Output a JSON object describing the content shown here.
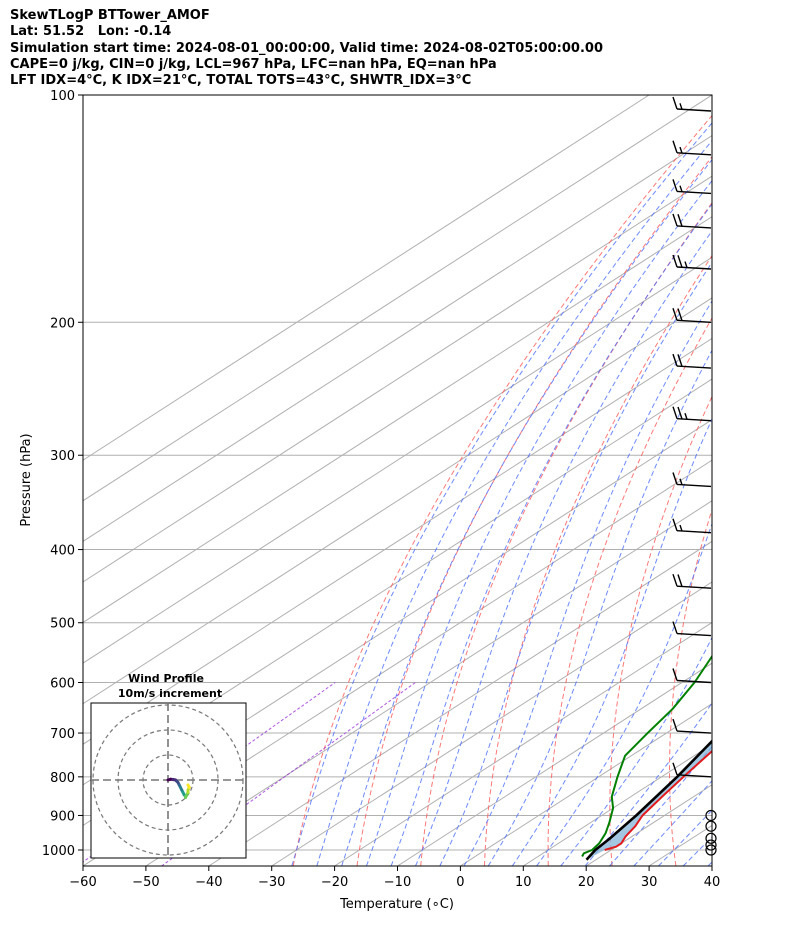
{
  "header": {
    "line1": "SkewTLogP BTTower_AMOF",
    "line2": "Lat: 51.52   Lon: -0.14",
    "line3": "Simulation start time: 2024-08-01_00:00:00, Valid time: 2024-08-02T05:00:00.00",
    "line4": "CAPE=0 j/kg, CIN=0 j/kg, LCL=967 hPa, LFC=nan hPa, EQ=nan hPa",
    "line5": "LFT IDX=4°C, K IDX=21°C, TOTAL TOTS=43°C, SHWTR_IDX=3°C"
  },
  "colors": {
    "temperature": "#e31a1c",
    "dewpoint": "#008000",
    "parcel": "#000000",
    "shading": "#7fb0d5",
    "dry_adiabat": "#ff5555",
    "moist_adiabat": "#4a6cff",
    "mixing_ratio": "#9b30d9",
    "grid": "#b0b0b0"
  },
  "chart_data": {
    "type": "line",
    "xlabel": "Temperature (∘C)",
    "ylabel": "Pressure (hPa)",
    "xlim": [
      -60,
      40
    ],
    "ylim": [
      1050,
      100
    ],
    "x_ticks": [
      -60,
      -50,
      -40,
      -30,
      -20,
      -10,
      0,
      10,
      20,
      30,
      40
    ],
    "y_ticks": [
      100,
      200,
      300,
      400,
      500,
      600,
      700,
      800,
      900,
      1000
    ],
    "y_scale": "log",
    "grid": true,
    "series": [
      {
        "key": "temperature",
        "points": [
          [
            1000,
            19
          ],
          [
            990,
            20
          ],
          [
            980,
            20
          ],
          [
            960,
            19
          ],
          [
            930,
            18
          ],
          [
            900,
            16.5
          ],
          [
            850,
            15
          ],
          [
            800,
            13.5
          ],
          [
            750,
            12
          ],
          [
            700,
            10.5
          ],
          [
            650,
            9
          ],
          [
            600,
            7.5
          ],
          [
            550,
            6
          ],
          [
            500,
            5
          ],
          [
            470,
            4
          ],
          [
            430,
            2
          ],
          [
            400,
            0
          ],
          [
            360,
            -3
          ],
          [
            320,
            -6
          ],
          [
            290,
            -8.5
          ],
          [
            260,
            -11
          ],
          [
            240,
            -14
          ],
          [
            220,
            -14.5
          ],
          [
            200,
            -14
          ],
          [
            180,
            -14
          ],
          [
            160,
            -12
          ],
          [
            150,
            -10
          ],
          [
            140,
            -7
          ],
          [
            130,
            -4
          ],
          [
            125,
            -3
          ],
          [
            120,
            -2
          ],
          [
            110,
            1
          ],
          [
            100,
            4
          ]
        ]
      },
      {
        "key": "dewpoint",
        "points": [
          [
            1020,
            17
          ],
          [
            1010,
            16.5
          ],
          [
            1000,
            17
          ],
          [
            980,
            16.5
          ],
          [
            950,
            15
          ],
          [
            920,
            13
          ],
          [
            880,
            10
          ],
          [
            850,
            7
          ],
          [
            800,
            3
          ],
          [
            750,
            -1
          ],
          [
            700,
            -3
          ],
          [
            650,
            -5
          ],
          [
            600,
            -8
          ],
          [
            550,
            -12
          ],
          [
            500,
            -15
          ],
          [
            450,
            -19
          ],
          [
            420,
            -21
          ],
          [
            400,
            -20
          ],
          [
            370,
            -18
          ],
          [
            340,
            -17
          ],
          [
            320,
            -16
          ],
          [
            300,
            -16
          ],
          [
            280,
            -15.5
          ],
          [
            260,
            -15
          ],
          [
            240,
            -18
          ],
          [
            220,
            -21
          ],
          [
            200,
            -23
          ],
          [
            180,
            -24
          ],
          [
            160,
            -26
          ],
          [
            150,
            -29
          ],
          [
            140,
            -30
          ],
          [
            130,
            -31
          ],
          [
            120,
            -28
          ],
          [
            100,
            -15
          ]
        ]
      },
      {
        "key": "parcel",
        "points": [
          [
            1030,
            18.5
          ],
          [
            1000,
            17.5
          ],
          [
            967,
            17
          ],
          [
            900,
            15.5
          ],
          [
            800,
            12.5
          ],
          [
            700,
            8.5
          ],
          [
            600,
            4
          ],
          [
            500,
            -2
          ],
          [
            400,
            -10.5
          ],
          [
            350,
            -16
          ],
          [
            300,
            -22.5
          ],
          [
            250,
            -31
          ],
          [
            200,
            -42
          ],
          [
            150,
            -57.5
          ],
          [
            125,
            -68
          ],
          [
            100,
            -80
          ]
        ]
      }
    ],
    "wind_barbs": [
      {
        "p": 1000,
        "speed": 0
      },
      {
        "p": 985,
        "speed": 0
      },
      {
        "p": 965,
        "speed": 0
      },
      {
        "p": 930,
        "speed": 0
      },
      {
        "p": 900,
        "speed": 0
      },
      {
        "p": 800,
        "speed": 10
      },
      {
        "p": 700,
        "speed": 10
      },
      {
        "p": 600,
        "speed": 10
      },
      {
        "p": 520,
        "speed": 10
      },
      {
        "p": 450,
        "speed": 20
      },
      {
        "p": 380,
        "speed": 15
      },
      {
        "p": 330,
        "speed": 15
      },
      {
        "p": 270,
        "speed": 25
      },
      {
        "p": 230,
        "speed": 20
      },
      {
        "p": 200,
        "speed": 20
      },
      {
        "p": 170,
        "speed": 25
      },
      {
        "p": 150,
        "speed": 20
      },
      {
        "p": 135,
        "speed": 15
      },
      {
        "p": 120,
        "speed": 15
      },
      {
        "p": 105,
        "speed": 15
      }
    ],
    "inset": {
      "title_line1": "Wind Profile",
      "title_line2": "10m/s increment",
      "hodograph": [
        [
          0,
          0
        ],
        [
          1,
          0.3
        ],
        [
          2,
          0.2
        ],
        [
          3,
          0
        ],
        [
          3.5,
          -0.5
        ],
        [
          4,
          -1
        ],
        [
          4.5,
          -2
        ],
        [
          5,
          -3
        ],
        [
          5.5,
          -4
        ],
        [
          6,
          -5
        ],
        [
          6.5,
          -6
        ],
        [
          7,
          -6.5
        ],
        [
          7,
          -7
        ],
        [
          7.5,
          -6
        ],
        [
          8,
          -5
        ],
        [
          8,
          -4
        ],
        [
          8.5,
          -3
        ],
        [
          8,
          -2
        ]
      ]
    }
  }
}
